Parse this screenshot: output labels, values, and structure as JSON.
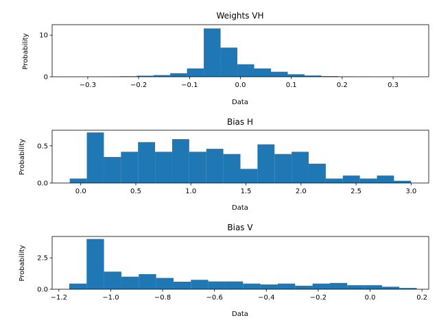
{
  "colors": {
    "bar": "#1f77b4"
  },
  "chart_data": [
    {
      "type": "bar",
      "title": "Weights VH",
      "xlabel": "Data",
      "ylabel": "Probability",
      "xlim": [
        -0.37,
        0.37
      ],
      "ylim": [
        0,
        12.5
      ],
      "xticks": [
        -0.3,
        -0.2,
        -0.1,
        0.0,
        0.1,
        0.2,
        0.3
      ],
      "xtick_labels": [
        "−0.3",
        "−0.2",
        "−0.1",
        "0.0",
        "0.1",
        "0.2",
        "0.3"
      ],
      "yticks": [
        0,
        10
      ],
      "ytick_labels": [
        "0",
        "10"
      ],
      "bins": [
        {
          "x0": -0.336,
          "x1": -0.303,
          "value": 0.02
        },
        {
          "x0": -0.303,
          "x1": -0.27,
          "value": 0.04
        },
        {
          "x0": -0.27,
          "x1": -0.237,
          "value": 0.08
        },
        {
          "x0": -0.237,
          "x1": -0.204,
          "value": 0.12
        },
        {
          "x0": -0.204,
          "x1": -0.171,
          "value": 0.25
        },
        {
          "x0": -0.171,
          "x1": -0.138,
          "value": 0.4
        },
        {
          "x0": -0.138,
          "x1": -0.105,
          "value": 0.85
        },
        {
          "x0": -0.105,
          "x1": -0.072,
          "value": 2.0
        },
        {
          "x0": -0.072,
          "x1": -0.039,
          "value": 11.6
        },
        {
          "x0": -0.039,
          "x1": -0.006,
          "value": 7.0
        },
        {
          "x0": -0.006,
          "x1": 0.027,
          "value": 3.0
        },
        {
          "x0": 0.027,
          "x1": 0.06,
          "value": 2.0
        },
        {
          "x0": 0.06,
          "x1": 0.093,
          "value": 1.2
        },
        {
          "x0": 0.093,
          "x1": 0.126,
          "value": 0.6
        },
        {
          "x0": 0.126,
          "x1": 0.159,
          "value": 0.3
        },
        {
          "x0": 0.159,
          "x1": 0.192,
          "value": 0.15
        },
        {
          "x0": 0.192,
          "x1": 0.225,
          "value": 0.08
        },
        {
          "x0": 0.225,
          "x1": 0.258,
          "value": 0.04
        },
        {
          "x0": 0.258,
          "x1": 0.291,
          "value": 0.02
        },
        {
          "x0": 0.291,
          "x1": 0.324,
          "value": 0.01
        }
      ]
    },
    {
      "type": "bar",
      "title": "Bias H",
      "xlabel": "Data",
      "ylabel": "Probability",
      "xlim": [
        -0.26,
        3.16
      ],
      "ylim": [
        0,
        0.71
      ],
      "xticks": [
        0.0,
        0.5,
        1.0,
        1.5,
        2.0,
        2.5,
        3.0
      ],
      "xtick_labels": [
        "0.0",
        "0.5",
        "1.0",
        "1.5",
        "2.0",
        "2.5",
        "3.0"
      ],
      "yticks": [
        0.0,
        0.5
      ],
      "ytick_labels": [
        "0.0",
        "0.5"
      ],
      "bins": [
        {
          "x0": -0.1,
          "x1": 0.055,
          "value": 0.06
        },
        {
          "x0": 0.055,
          "x1": 0.21,
          "value": 0.68
        },
        {
          "x0": 0.21,
          "x1": 0.365,
          "value": 0.35
        },
        {
          "x0": 0.365,
          "x1": 0.52,
          "value": 0.42
        },
        {
          "x0": 0.52,
          "x1": 0.675,
          "value": 0.55
        },
        {
          "x0": 0.675,
          "x1": 0.83,
          "value": 0.42
        },
        {
          "x0": 0.83,
          "x1": 0.985,
          "value": 0.59
        },
        {
          "x0": 0.985,
          "x1": 1.14,
          "value": 0.42
        },
        {
          "x0": 1.14,
          "x1": 1.295,
          "value": 0.46
        },
        {
          "x0": 1.295,
          "x1": 1.45,
          "value": 0.39
        },
        {
          "x0": 1.45,
          "x1": 1.605,
          "value": 0.19
        },
        {
          "x0": 1.605,
          "x1": 1.76,
          "value": 0.52
        },
        {
          "x0": 1.76,
          "x1": 1.915,
          "value": 0.39
        },
        {
          "x0": 1.915,
          "x1": 2.07,
          "value": 0.42
        },
        {
          "x0": 2.07,
          "x1": 2.225,
          "value": 0.26
        },
        {
          "x0": 2.225,
          "x1": 2.38,
          "value": 0.06
        },
        {
          "x0": 2.38,
          "x1": 2.535,
          "value": 0.1
        },
        {
          "x0": 2.535,
          "x1": 2.69,
          "value": 0.06
        },
        {
          "x0": 2.69,
          "x1": 2.845,
          "value": 0.1
        },
        {
          "x0": 2.845,
          "x1": 3.0,
          "value": 0.03
        }
      ]
    },
    {
      "type": "bar",
      "title": "Bias V",
      "xlabel": "Data",
      "ylabel": "Probability",
      "xlim": [
        -1.226,
        0.226
      ],
      "ylim": [
        0,
        4.2
      ],
      "xticks": [
        -1.2,
        -1.0,
        -0.8,
        -0.6,
        -0.4,
        -0.2,
        0.0,
        0.2
      ],
      "xtick_labels": [
        "−1.2",
        "−1.0",
        "−0.8",
        "−0.6",
        "−0.4",
        "−0.2",
        "0.0",
        "0.2"
      ],
      "yticks": [
        0.0,
        2.5
      ],
      "ytick_labels": [
        "0.0",
        "2.5"
      ],
      "bins": [
        {
          "x0": -1.16,
          "x1": -1.093,
          "value": 0.45
        },
        {
          "x0": -1.093,
          "x1": -1.026,
          "value": 4.0
        },
        {
          "x0": -1.026,
          "x1": -0.959,
          "value": 1.4
        },
        {
          "x0": -0.959,
          "x1": -0.892,
          "value": 1.0
        },
        {
          "x0": -0.892,
          "x1": -0.825,
          "value": 1.2
        },
        {
          "x0": -0.825,
          "x1": -0.758,
          "value": 0.9
        },
        {
          "x0": -0.758,
          "x1": -0.691,
          "value": 0.6
        },
        {
          "x0": -0.691,
          "x1": -0.624,
          "value": 0.75
        },
        {
          "x0": -0.624,
          "x1": -0.557,
          "value": 0.62
        },
        {
          "x0": -0.557,
          "x1": -0.49,
          "value": 0.62
        },
        {
          "x0": -0.49,
          "x1": -0.423,
          "value": 0.45
        },
        {
          "x0": -0.423,
          "x1": -0.356,
          "value": 0.38
        },
        {
          "x0": -0.356,
          "x1": -0.289,
          "value": 0.45
        },
        {
          "x0": -0.289,
          "x1": -0.222,
          "value": 0.28
        },
        {
          "x0": -0.222,
          "x1": -0.155,
          "value": 0.45
        },
        {
          "x0": -0.155,
          "x1": -0.088,
          "value": 0.5
        },
        {
          "x0": -0.088,
          "x1": -0.021,
          "value": 0.32
        },
        {
          "x0": -0.021,
          "x1": 0.046,
          "value": 0.32
        },
        {
          "x0": 0.046,
          "x1": 0.113,
          "value": 0.2
        },
        {
          "x0": 0.113,
          "x1": 0.18,
          "value": 0.1
        }
      ]
    }
  ]
}
